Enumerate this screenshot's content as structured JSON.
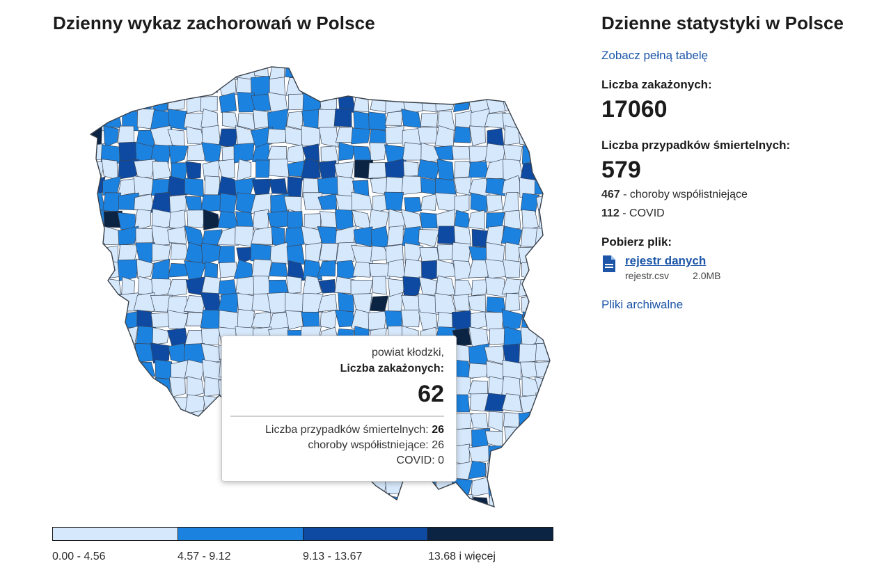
{
  "map_title": "Dzienny wykaz zachorowań w Polsce",
  "stats": {
    "title": "Dzienne statystyki w Polsce",
    "full_table_link": "Zobacz pełną tabelę",
    "infected_label": "Liczba zakażonych:",
    "infected_value": "17060",
    "deaths_label": "Liczba przypadków śmiertelnych:",
    "deaths_value": "579",
    "comorb_value": "467",
    "comorb_label": "choroby współistniejące",
    "covid_value": "112",
    "covid_label": "COVID",
    "download_label": "Pobierz plik:",
    "file_link": "rejestr danych",
    "file_name": "rejestr.csv",
    "file_size": "2.0MB",
    "archive_link": "Pliki archiwalne",
    "file_icon": "file-icon"
  },
  "legend": {
    "items": [
      {
        "label": "0.00 - 4.56",
        "color": "#d6e8fb"
      },
      {
        "label": "4.57 - 9.12",
        "color": "#1c82e0"
      },
      {
        "label": "9.13 - 13.67",
        "color": "#0e4aa2"
      },
      {
        "label": "13.68 i więcej",
        "color": "#0b2444"
      }
    ]
  },
  "tooltip": {
    "region": "powiat kłodzki,",
    "infected_label": "Liczba zakażonych:",
    "infected_value": "62",
    "deaths_label": "Liczba przypadków śmiertelnych:",
    "deaths_value": "26",
    "comorb_label": "choroby współistniejące:",
    "comorb_value": "26",
    "covid_label": "COVID:",
    "covid_value": "0"
  }
}
